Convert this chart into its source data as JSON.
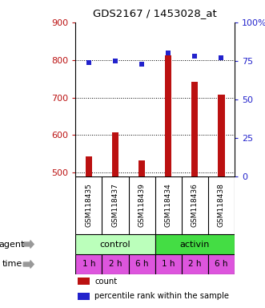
{
  "title": "GDS2167 / 1453028_at",
  "categories": [
    "GSM118435",
    "GSM118437",
    "GSM118439",
    "GSM118434",
    "GSM118436",
    "GSM118438"
  ],
  "bar_values": [
    543,
    608,
    532,
    812,
    742,
    708
  ],
  "dot_values": [
    74,
    75,
    73,
    80,
    78,
    77
  ],
  "bar_color": "#bb1111",
  "dot_color": "#2222cc",
  "ylim_left": [
    490,
    900
  ],
  "ylim_right": [
    0,
    100
  ],
  "yticks_left": [
    500,
    600,
    700,
    800,
    900
  ],
  "yticks_right": [
    0,
    25,
    50,
    75,
    100
  ],
  "ytick_labels_left": [
    "500",
    "600",
    "700",
    "800",
    "900"
  ],
  "ytick_labels_right": [
    "0",
    "25",
    "50",
    "75",
    "100%"
  ],
  "agent_groups": [
    {
      "label": "control",
      "color": "#bbffbb",
      "span": [
        0,
        3
      ]
    },
    {
      "label": "activin",
      "color": "#44dd44",
      "span": [
        3,
        6
      ]
    }
  ],
  "time_labels": [
    "1 h",
    "2 h",
    "6 h",
    "1 h",
    "2 h",
    "6 h"
  ],
  "time_color": "#dd55dd",
  "gsm_bg": "#cccccc",
  "legend_items": [
    {
      "label": "count",
      "color": "#bb1111"
    },
    {
      "label": "percentile rank within the sample",
      "color": "#2222cc"
    }
  ],
  "background_color": "#ffffff",
  "bar_width": 0.25
}
